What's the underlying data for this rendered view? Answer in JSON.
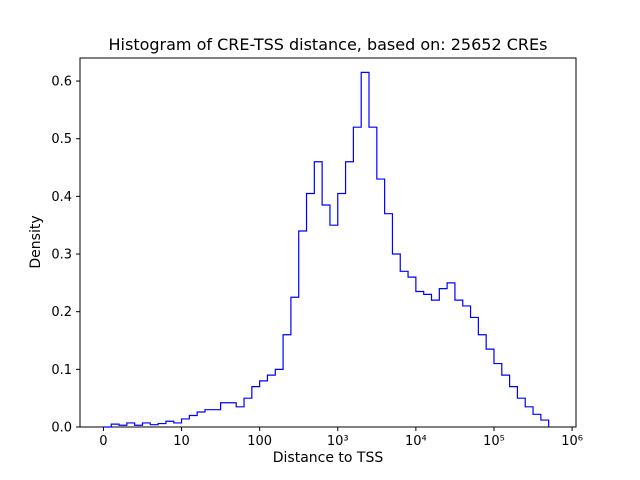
{
  "figure": {
    "background": "#ffffff"
  },
  "chart_data": {
    "type": "histogram-step",
    "title": "Histogram of CRE-TSS distance, based on: 25652 CREs",
    "xlabel": "Distance to TSS",
    "ylabel": "Density",
    "x_scale": "symlog",
    "line_color": "#0000ff",
    "axis_color": "#000000",
    "grid": false,
    "legend": false,
    "xlim_u": [
      -0.3,
      6.05
    ],
    "ylim": [
      0,
      0.64
    ],
    "x_ticks": [
      {
        "u": 0,
        "label": "0"
      },
      {
        "u": 1,
        "label": "10"
      },
      {
        "u": 2,
        "label": "100"
      },
      {
        "u": 3,
        "label": "10³"
      },
      {
        "u": 4,
        "label": "10⁴"
      },
      {
        "u": 5,
        "label": "10⁵"
      },
      {
        "u": 6,
        "label": "10⁶"
      }
    ],
    "y_ticks": [
      0.0,
      0.1,
      0.2,
      0.3,
      0.4,
      0.5,
      0.6
    ],
    "bins_start_u": 0.0,
    "bin_width_u": 0.1,
    "densities": [
      0.0,
      0.005,
      0.003,
      0.007,
      0.003,
      0.007,
      0.004,
      0.006,
      0.01,
      0.007,
      0.014,
      0.02,
      0.026,
      0.03,
      0.03,
      0.042,
      0.042,
      0.035,
      0.05,
      0.07,
      0.08,
      0.09,
      0.1,
      0.16,
      0.225,
      0.34,
      0.405,
      0.46,
      0.385,
      0.35,
      0.405,
      0.46,
      0.52,
      0.615,
      0.52,
      0.43,
      0.37,
      0.3,
      0.27,
      0.26,
      0.235,
      0.23,
      0.22,
      0.24,
      0.25,
      0.22,
      0.21,
      0.19,
      0.16,
      0.135,
      0.11,
      0.09,
      0.07,
      0.05,
      0.035,
      0.022,
      0.012
    ]
  }
}
